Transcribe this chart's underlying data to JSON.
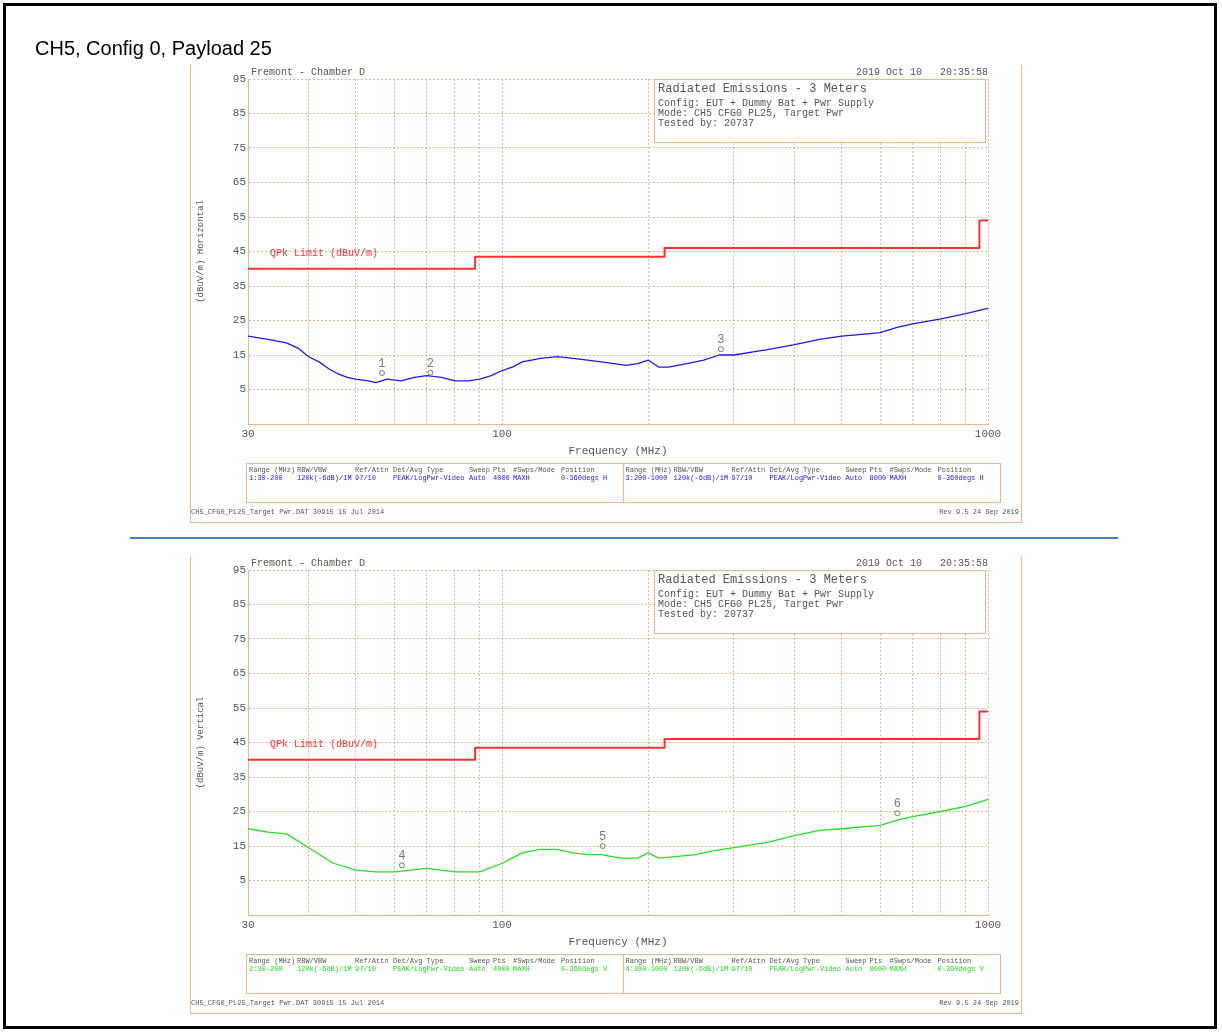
{
  "chart_data": [
    {
      "type": "line",
      "title": "CH5, Config 0, Payload 25",
      "xlabel": "Frequency (MHz)",
      "ylabel": "(dBuV/m) Horizontal",
      "annotations": [
        "Fremont - Chamber D",
        "2019 Oct 10   20:35:58",
        "Radiated Emissions - 3 Meters",
        "Config: EUT + Dummy Bat + Pwr Supply",
        "Mode: CH5 CFG0 PL25, Target Pwr",
        "Tested by: 20737",
        "CH5_CFG0_PL25_Target Pwr.DAT 30915 15 Jul 2014",
        "Rev 9.5 24 Sep 2019",
        "Range (MHz)",
        "RBW/VBW",
        "Ref/Attn",
        "Det/Avg Type",
        "Sweep",
        "Pts",
        "#Swps/Mode",
        "Position",
        "Range (MHz)",
        "RBW/VBW",
        "Ref/Attn",
        "Det/Avg Type",
        "Sweep",
        "Pts",
        "#Swps/Mode",
        "Position",
        "1:30-200",
        "120k(-6dB)/1M",
        "97/10",
        "PEAK/LogPwr-Video",
        "Auto",
        "4000",
        "MAXH",
        "0-360degs H",
        "3:200-1000",
        "120k(-6dB)/1M",
        "97/10",
        "PEAK/LogPwr-Video",
        "Auto",
        "8000",
        "MAXH",
        "0-360degs H",
        {
          "text": "1",
          "x": 56.6,
          "y": 9.8
        },
        {
          "text": "2",
          "x": 71.2,
          "y": 9.9
        },
        {
          "text": "3",
          "x": 282,
          "y": 16.7
        }
      ],
      "series": [
        {
          "type": "line",
          "color": "#1a1ae6",
          "x": [
            30,
            33,
            36,
            38,
            40,
            42,
            44,
            46,
            48,
            50,
            53,
            55,
            58,
            62,
            66,
            70,
            75,
            80,
            85,
            90,
            95,
            100,
            105,
            110,
            115,
            120,
            130,
            140,
            150,
            160,
            170,
            180,
            190,
            200,
            210,
            220,
            240,
            260,
            280,
            300,
            350,
            400,
            450,
            500,
            550,
            600,
            650,
            700,
            800,
            900,
            1000
          ],
          "values": [
            20.5,
            19.5,
            18.5,
            17,
            14.5,
            13,
            11,
            9.5,
            8.5,
            8,
            7.5,
            7,
            8,
            7.5,
            8.5,
            9,
            8.5,
            7.5,
            7.5,
            8,
            9,
            10.5,
            11.5,
            13,
            13.5,
            14,
            14.5,
            14,
            13.5,
            13,
            12.5,
            12,
            12.5,
            13.5,
            11.5,
            11.5,
            12.5,
            13.5,
            15,
            15,
            16.5,
            18,
            19.5,
            20.5,
            21,
            21.5,
            23,
            24,
            25.5,
            27,
            28.5
          ]
        },
        {
          "type": "step",
          "name": "QPk Limit (dBuV/m)",
          "color": "#ff3030",
          "x": [
            30,
            88,
            216,
            960,
            1000
          ],
          "values": [
            40,
            43.5,
            46,
            54,
            54
          ]
        }
      ],
      "xlim": [
        30,
        1000
      ],
      "ylim": [
        -5,
        95
      ],
      "xticks": [
        30,
        {
          "value": 40,
          "label": null
        },
        {
          "value": 50,
          "label": null
        },
        {
          "value": 60,
          "label": null
        },
        {
          "value": 70,
          "label": null
        },
        {
          "value": 80,
          "label": null
        },
        {
          "value": 90,
          "label": null
        },
        100,
        {
          "value": 200,
          "label": null
        },
        {
          "value": 300,
          "label": null
        },
        {
          "value": 400,
          "label": null
        },
        {
          "value": 500,
          "label": null
        },
        {
          "value": 600,
          "label": null
        },
        {
          "value": 700,
          "label": null
        },
        {
          "value": 800,
          "label": null
        },
        {
          "value": 900,
          "label": null
        },
        1000
      ],
      "yticks": [
        5,
        15,
        25,
        35,
        45,
        55,
        65,
        75,
        85,
        95
      ],
      "log": "x",
      "grid": true,
      "legend": false,
      "marker": "none"
    },
    {
      "type": "line",
      "xlabel": "Frequency (MHz)",
      "ylabel": "(dBuV/m) Vertical",
      "annotations": [
        "Fremont - Chamber D",
        "2019 Oct 10   20:35:58",
        "Radiated Emissions - 3 Meters",
        "Config: EUT + Dummy Bat + Pwr Supply",
        "Mode: CH5 CFG0 PL25, Target Pwr",
        "Tested by: 20737",
        "CH5_CFG0_PL25_Target Pwr.DAT 30915 15 Jul 2014",
        "Rev 9.5 24 Sep 2019",
        "Range (MHz)",
        "RBW/VBW",
        "Ref/Attn",
        "Det/Avg Type",
        "Sweep",
        "Pts",
        "#Swps/Mode",
        "Position",
        "Range (MHz)",
        "RBW/VBW",
        "Ref/Attn",
        "Det/Avg Type",
        "Sweep",
        "Pts",
        "#Swps/Mode",
        "Position",
        "2:30-200",
        "120k(-6dB)/1M",
        "97/10",
        "PEAK/LogPwr-Video",
        "Auto",
        "4000",
        "MAXH",
        "0-360degs V",
        "4:200-1000",
        "120k(-6dB)/1M",
        "97/10",
        "PEAK/LogPwr-Video",
        "Auto",
        "8000",
        "MAXH",
        "0-360degs V",
        {
          "text": "4",
          "x": 62.2,
          "y": 9.4
        },
        {
          "text": "5",
          "x": 161,
          "y": 15
        },
        {
          "text": "6",
          "x": 651,
          "y": 24.5
        }
      ],
      "series": [
        {
          "type": "line",
          "color": "#22e022",
          "x": [
            30,
            33,
            36,
            40,
            45,
            50,
            55,
            60,
            65,
            70,
            80,
            90,
            100,
            110,
            120,
            130,
            140,
            150,
            160,
            175,
            190,
            200,
            210,
            230,
            250,
            270,
            300,
            350,
            400,
            450,
            500,
            600,
            650,
            700,
            800,
            900,
            1000
          ],
          "values": [
            20,
            19,
            18.5,
            14.5,
            10,
            8,
            7.5,
            7.5,
            8,
            8.5,
            7.5,
            7.5,
            10,
            13,
            14,
            14,
            13,
            12.5,
            12.5,
            11.5,
            11.5,
            13,
            11.5,
            12,
            12.5,
            13.5,
            14.5,
            16,
            18,
            19.5,
            20,
            21,
            22.5,
            23.5,
            25,
            26.5,
            28.5
          ]
        },
        {
          "type": "step",
          "name": "QPk Limit (dBuV/m)",
          "color": "#ff3030",
          "x": [
            30,
            88,
            216,
            960,
            1000
          ],
          "values": [
            40,
            43.5,
            46,
            54,
            54
          ]
        }
      ],
      "xlim": [
        30,
        1000
      ],
      "ylim": [
        -5,
        95
      ],
      "xticks": [
        30,
        {
          "value": 40,
          "label": null
        },
        {
          "value": 50,
          "label": null
        },
        {
          "value": 60,
          "label": null
        },
        {
          "value": 70,
          "label": null
        },
        {
          "value": 80,
          "label": null
        },
        {
          "value": 90,
          "label": null
        },
        100,
        {
          "value": 200,
          "label": null
        },
        {
          "value": 300,
          "label": null
        },
        {
          "value": 400,
          "label": null
        },
        {
          "value": 500,
          "label": null
        },
        {
          "value": 600,
          "label": null
        },
        {
          "value": 700,
          "label": null
        },
        {
          "value": 800,
          "label": null
        },
        {
          "value": 900,
          "label": null
        },
        1000
      ],
      "yticks": [
        5,
        15,
        25,
        35,
        45,
        55,
        65,
        75,
        85,
        95
      ],
      "log": "x",
      "grid": true,
      "legend": false,
      "marker": "none"
    }
  ]
}
